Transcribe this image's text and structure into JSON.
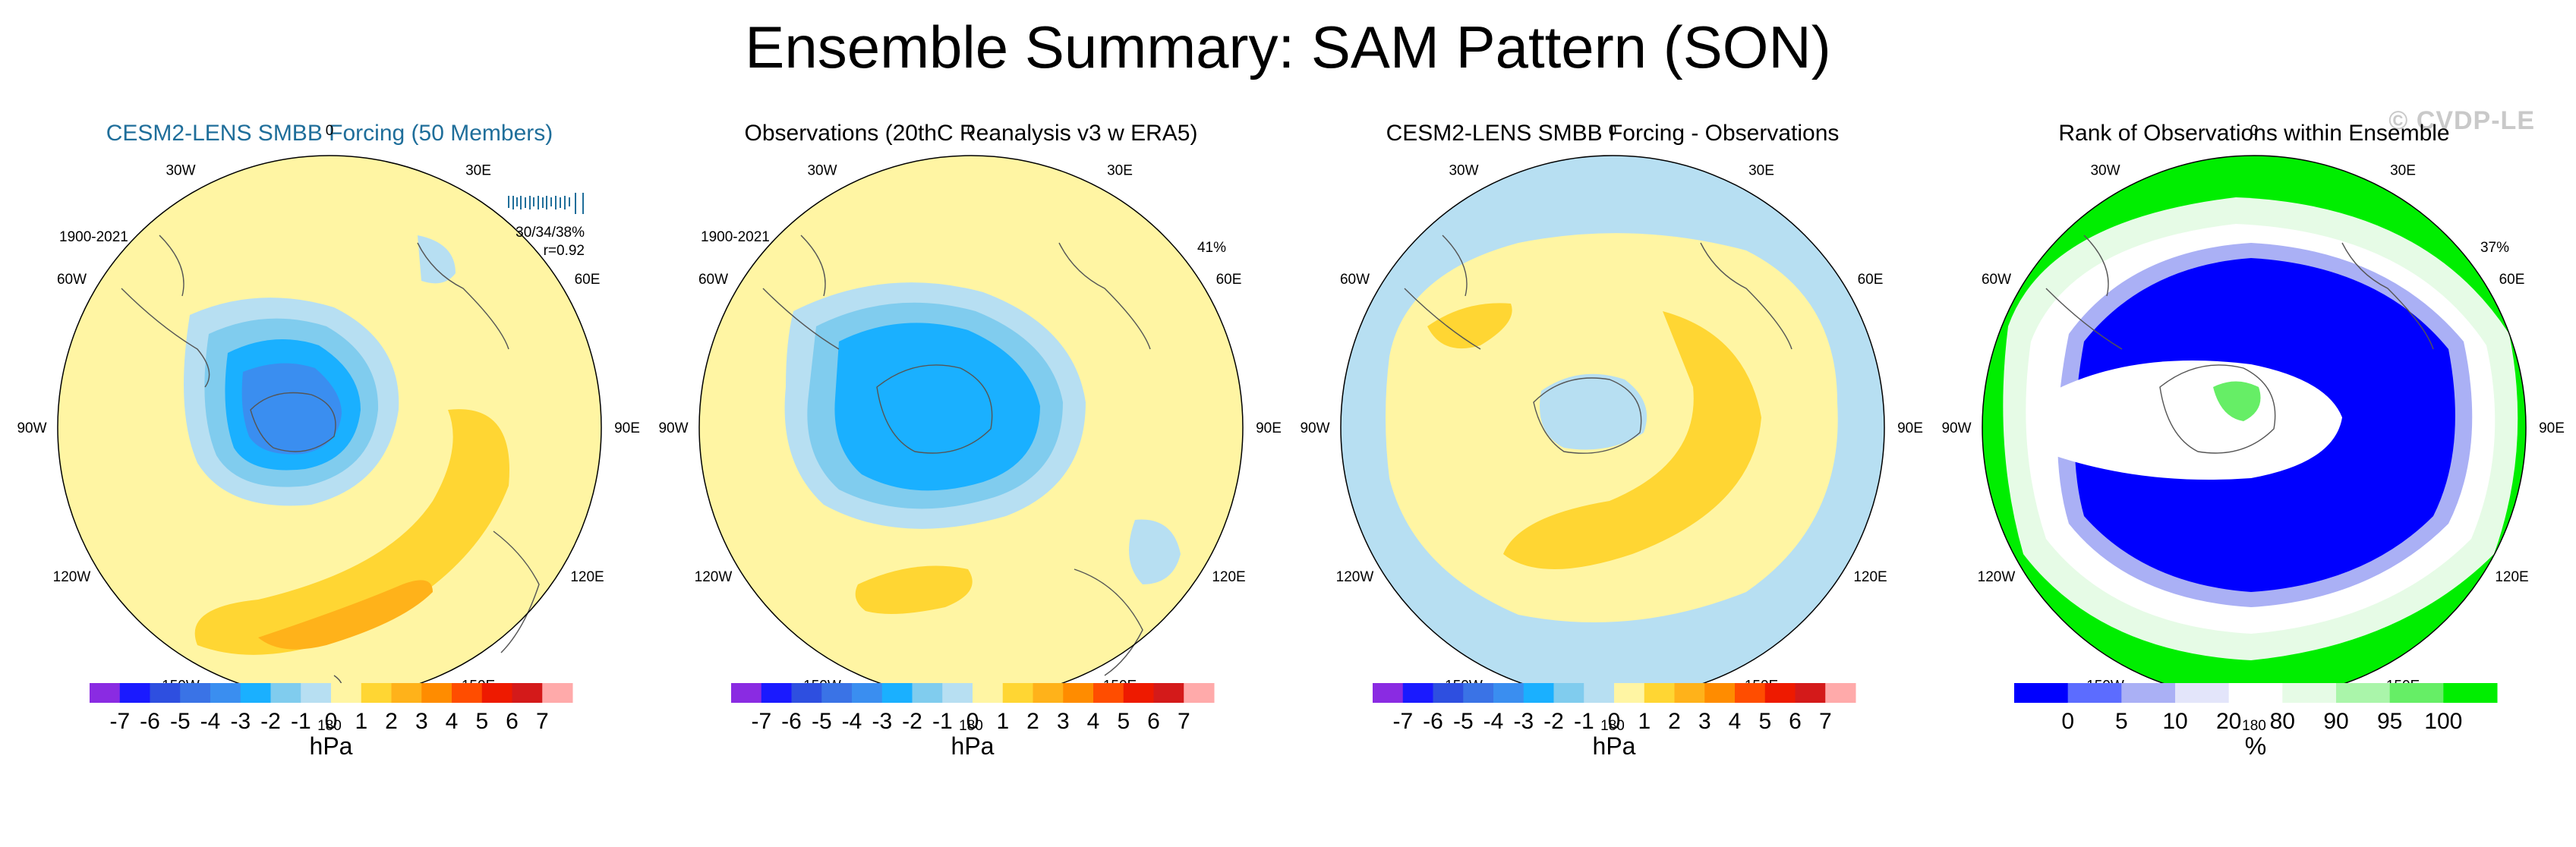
{
  "figure": {
    "title": "Ensemble Summary: SAM Pattern (SON)",
    "watermark": "© CVDP-LE"
  },
  "chart_data": [
    {
      "type": "heatmap",
      "projection": "south polar stereographic",
      "title": "CESM2-LENS SMBB Forcing (50 Members)",
      "period": "1900-2021",
      "stat_variance": "30/34/38%",
      "stat_correlation": "r=0.92",
      "colorbar_unit": "hPa",
      "colorbar_ticks": [
        "-7",
        "-6",
        "-5",
        "-4",
        "-3",
        "-2",
        "-1",
        "0",
        "1",
        "2",
        "3",
        "4",
        "5",
        "6",
        "7"
      ],
      "lon_labels": [
        "0",
        "30E",
        "60E",
        "90E",
        "120E",
        "150E",
        "180",
        "150W",
        "120W",
        "90W",
        "60W",
        "30W"
      ],
      "pattern": {
        "polar_low_min_hPa": -4,
        "midlat_high_max_hPa": 3,
        "dominant_range_hPa": [
          0,
          1
        ]
      }
    },
    {
      "type": "heatmap",
      "projection": "south polar stereographic",
      "title": "Observations (20thC Reanalysis v3 w ERA5)",
      "period": "1900-2021",
      "stat_variance": "41%",
      "colorbar_unit": "hPa",
      "colorbar_ticks": [
        "-7",
        "-6",
        "-5",
        "-4",
        "-3",
        "-2",
        "-1",
        "0",
        "1",
        "2",
        "3",
        "4",
        "5",
        "6",
        "7"
      ],
      "lon_labels": [
        "0",
        "30E",
        "60E",
        "90E",
        "120E",
        "150E",
        "180",
        "150W",
        "120W",
        "90W",
        "60W",
        "30W"
      ],
      "pattern": {
        "polar_low_min_hPa": -3,
        "midlat_high_max_hPa": 2,
        "dominant_range_hPa": [
          0,
          1
        ]
      }
    },
    {
      "type": "heatmap",
      "projection": "south polar stereographic",
      "title": "CESM2-LENS SMBB Forcing - Observations",
      "colorbar_unit": "hPa",
      "colorbar_ticks": [
        "-7",
        "-6",
        "-5",
        "-4",
        "-3",
        "-2",
        "-1",
        "0",
        "1",
        "2",
        "3",
        "4",
        "5",
        "6",
        "7"
      ],
      "lon_labels": [
        "0",
        "30E",
        "60E",
        "90E",
        "120E",
        "150E",
        "180",
        "150W",
        "120W",
        "90W",
        "60W",
        "30W"
      ],
      "pattern": {
        "difference_max_hPa": 2,
        "difference_min_hPa": -1
      }
    },
    {
      "type": "heatmap",
      "projection": "south polar stereographic",
      "title": "Rank of Observations within Ensemble",
      "stat_variance": "37%",
      "colorbar_unit": "%",
      "colorbar_ticks": [
        "0",
        "5",
        "10",
        "20",
        "80",
        "90",
        "95",
        "100"
      ],
      "lon_labels": [
        "0",
        "30E",
        "60E",
        "90E",
        "120E",
        "150E",
        "180",
        "150W",
        "120W",
        "90W",
        "60W",
        "30W"
      ],
      "pattern": {
        "rank_range_pct": [
          0,
          100
        ]
      }
    }
  ],
  "palettes": {
    "hpa": [
      "#8a2be2",
      "#1a1aff",
      "#2e4fe0",
      "#3a73e6",
      "#3a8ef0",
      "#1ab0ff",
      "#80ccee",
      "#b7dff2",
      "#fff5a3",
      "#ffd633",
      "#ffb21a",
      "#ff8c00",
      "#ff4d00",
      "#ee1a00",
      "#d41a1a",
      "#ffaaaa"
    ],
    "rank": [
      "#0000ff",
      "#5c6cff",
      "#aab0f5",
      "#e3e5fa",
      "#ffffff",
      "#e6fbe6",
      "#aaf5aa",
      "#66ee66",
      "#00ee00"
    ]
  }
}
